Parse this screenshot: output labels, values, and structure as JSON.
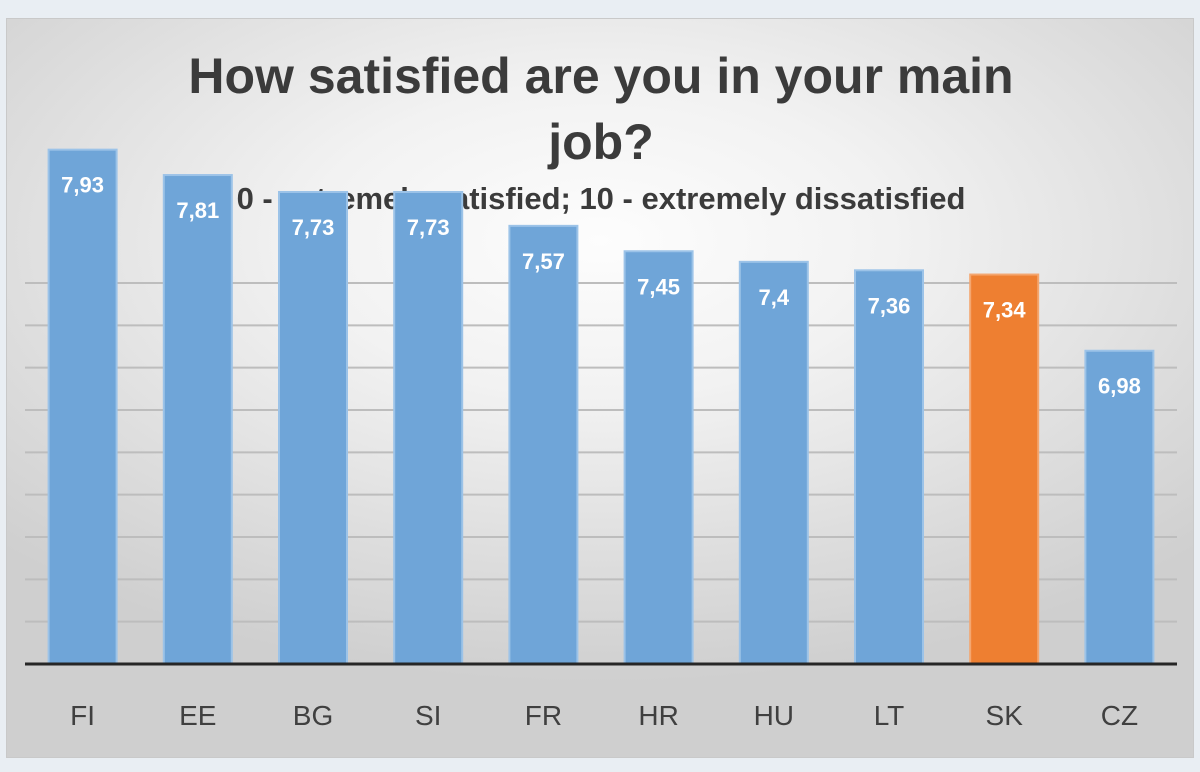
{
  "chart_data": {
    "type": "bar",
    "title_lines": [
      "How satisfied are you in your main",
      "job?"
    ],
    "subtitle": "0 - extremely satisfied; 10 - extremely dissatisfied",
    "categories": [
      "FI",
      "EE",
      "BG",
      "SI",
      "FR",
      "HR",
      "HU",
      "LT",
      "SK",
      "CZ"
    ],
    "values": [
      7.93,
      7.81,
      7.73,
      7.73,
      7.57,
      7.45,
      7.4,
      7.36,
      7.34,
      6.98
    ],
    "value_labels": [
      "7,93",
      "7,81",
      "7,73",
      "7,73",
      "7,57",
      "7,45",
      "7,4",
      "7,36",
      "7,34",
      "6,98"
    ],
    "highlight_category": "SK",
    "colors": {
      "bar": "#6fa5d8",
      "bar_border": "#9cc3e8",
      "highlight": "#ee7f31",
      "highlight_border": "#f4a66f",
      "gridline": "#bdbdbd",
      "axis": "#262626"
    },
    "ylim": [
      5.5,
      8.5
    ],
    "gridline_step": 0.2,
    "grid": true,
    "legend": "none",
    "xlabel": "",
    "ylabel": ""
  }
}
